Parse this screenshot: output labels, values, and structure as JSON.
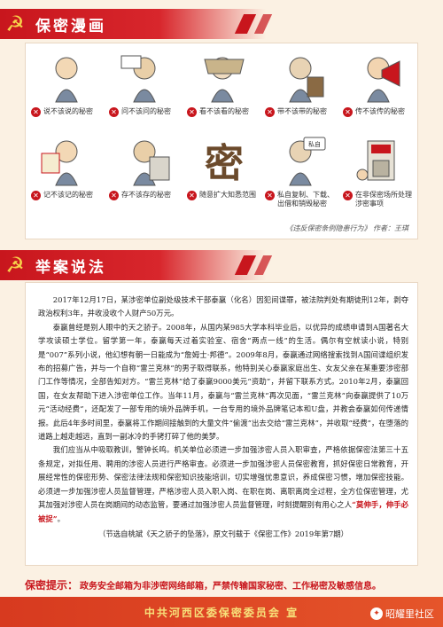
{
  "section1": {
    "title": "保密漫画"
  },
  "comics": [
    {
      "label": "说不该说的秘密",
      "icon": "mouth-speaking-figure"
    },
    {
      "label": "问不该问的秘密",
      "icon": "asking-figure"
    },
    {
      "label": "看不该看的秘密",
      "icon": "peeking-figure"
    },
    {
      "label": "带不该带的秘密",
      "icon": "carrying-briefcase-figure"
    },
    {
      "label": "传不该传的秘密",
      "icon": "megaphone-figure"
    },
    {
      "label": "记不该记的秘密",
      "icon": "notebook-figure"
    },
    {
      "label": "存不该存的秘密",
      "icon": "storage-figure"
    },
    {
      "label": "随意扩大知悉范围",
      "icon": "mi-character",
      "mi_char": "密"
    },
    {
      "label": "私自复制、下载、出借和销毁秘密",
      "icon": "copying-figure",
      "tag": "私自"
    },
    {
      "label": "在非保密场所处理涉密事项",
      "icon": "shop-building"
    }
  ],
  "comics_source": "《违反保密条例隐患行为》 作者：王琪",
  "section2": {
    "title": "举案说法"
  },
  "article": {
    "paragraphs": [
      "2017年12月17日，某涉密单位副处级技术干部泰赢（化名）因犯间谍罪，被法院判处有期徒刑12年，剥夺政治权利3年，并收没收个人财产50万元。",
      "泰赢曾经是别人眼中的天之骄子。2008年，从国内某985大学本科毕业后，以优异的成绩申请到A国著名大学攻读硕士学位。留学第一年，泰赢每天过着实验室、宿舍“两点一线”的生活。偶尔有空就读小说，特别是“007”系列小说，他幻想有朝一日能成为“詹姆士·邦德”。2009年8月，泰赢通过网络搜索找到A国间谍组织发布的招募广告，并与一个自称“雷兰克林”的男子取得联系，他特别关心泰赢家庭出生、女友父亲在某重要涉密部门工作等情况，全部告知对方。“雷兰克林”给了泰赢9000美元“资助”，并留下联系方式。2010年2月，泰赢回国，在女友帮助下进入涉密单位工作。当年11月，泰赢与“雷兰克林”再次见面，“雷兰克林”向泰赢提供了10万元“活动经费”，还配发了一部专用的境外品牌手机，一台专用的境外品牌笔记本和U盘，并教会泰赢如何传递情报。此后4年多时间里，泰赢将工作期间接触到的大量文件“偷渡”出去交给“雷兰克林”，并收取“经费”，在堕落的道路上越走越远，直到一副冰冷的手铐打碎了他的美梦。",
      "我们应当从中吸取教训，警钟长鸣。机关单位必须进一步加强涉密人员入职审查，严格依据保密法第三十五条规定，对拟任用、聘用的涉密人员进行严格审查。必须进一步加强涉密人员保密教育，抓好保密日常教育，开展经常性的保密形势、保密法律法规和保密知识技能培训，切实增强忧患意识，养成保密习惯，增加保密技能。必须进一步加强涉密人员监督管理，严格涉密人员入职入岗、在职在岗、离职离岗全过程，全方位保密管理，尤其加强对涉密人员在岗期间的动态监管，要通过加强涉密人员监督管理，时刻提醒别有用心之人"
    ],
    "emphasis": "“莫伸手，伸手必被捉”",
    "emphasis_tail": "。",
    "note": "（节选自桃斌《天之骄子的坠落》，原文刊载于《保密工作》2019年第7期）"
  },
  "tip": {
    "label": "保密提示：",
    "text": "政务安全邮箱为非涉密网络邮箱，严禁传输国家秘密、工作秘密及敏感信息。"
  },
  "footer": {
    "text": "中共河西区委保密委员会 宣",
    "watermark": "昭耀里社区"
  },
  "colors": {
    "accent": "#c8161d",
    "background": "#fbf1e3",
    "footer": "#e5552a",
    "gold": "#f7d24a"
  }
}
